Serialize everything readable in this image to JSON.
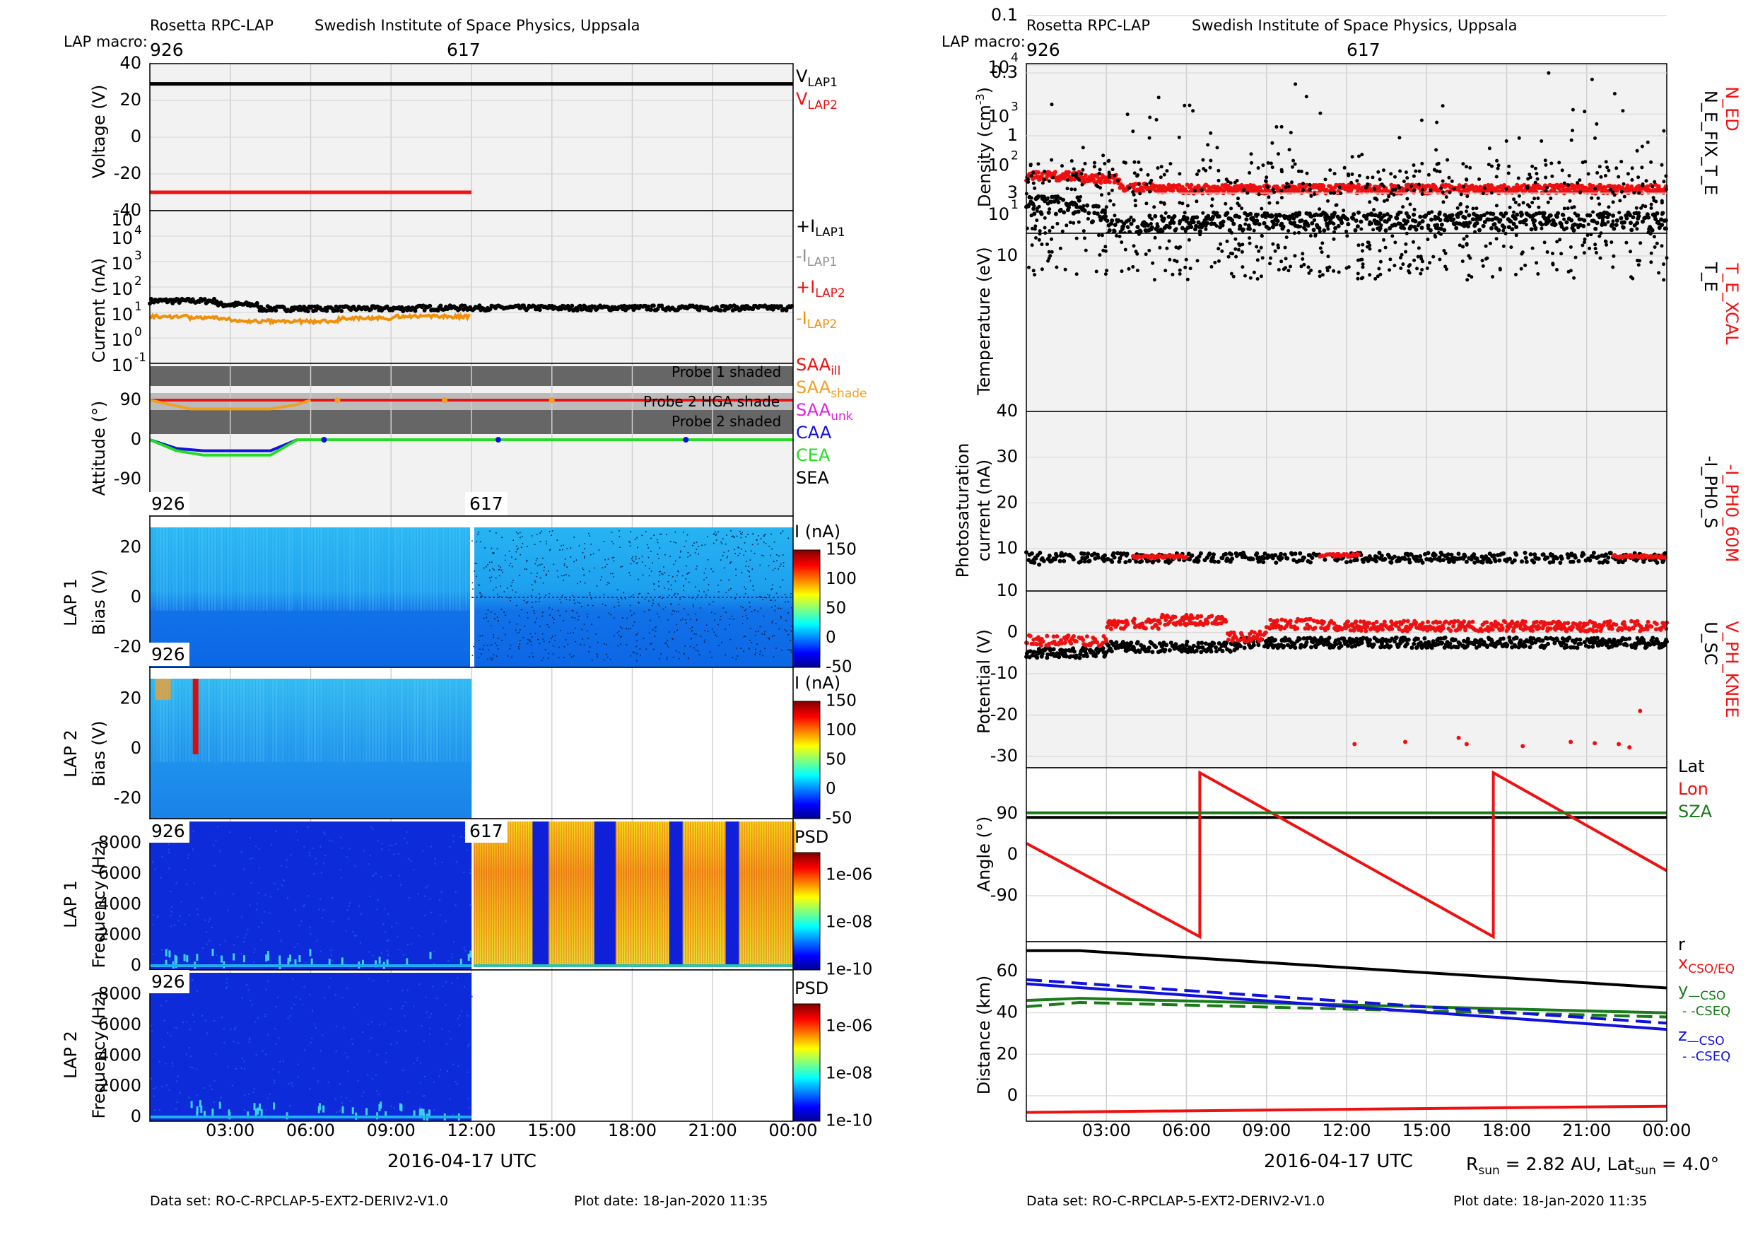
{
  "header": {
    "left": {
      "instrument": "Rosetta RPC-LAP",
      "institute": "Swedish Institute of Space Physics, Uppsala",
      "macro_label": "LAP macro:",
      "macro_1": "926",
      "macro_2": "617"
    },
    "right": {
      "instrument": "Rosetta RPC-LAP",
      "institute": "Swedish Institute of Space Physics, Uppsala",
      "macro_label": "LAP macro:",
      "macro_1": "926",
      "macro_2": "617"
    }
  },
  "footer": {
    "left_dataset": "Data set: RO-C-RPCLAP-5-EXT2-DERIV2-V1.0",
    "left_plotdate": "Plot date: 18-Jan-2020 11:35",
    "right_dataset": "Data set: RO-C-RPCLAP-5-EXT2-DERIV2-V1.0",
    "right_plotdate": "Plot date: 18-Jan-2020 11:35",
    "rsun_label": "R",
    "rsun_sub": "sun",
    "rsun_value": " = 2.82 AU, Lat",
    "latsun_sub": "sun",
    "latsun_value": " = 4.0°"
  },
  "time_axis": {
    "ticks": [
      "03:00",
      "06:00",
      "09:00",
      "12:00",
      "15:00",
      "18:00",
      "21:00",
      "00:00"
    ],
    "xlabel_left": "2016-04-17 UTC",
    "xlabel_right": "2016-04-17 UTC"
  },
  "colors": {
    "black": "#000000",
    "red": "#ee1111",
    "orange": "#f0900a",
    "gray": "#909090",
    "green": "#1a7a1a",
    "lime": "#22dd22",
    "blue": "#1111dd",
    "magenta": "#dd22dd",
    "panel_bg": "#f2f2f2"
  },
  "panels": {
    "voltage": {
      "ylabel": "Voltage (V)",
      "ticks": [
        "40",
        "20",
        "0",
        "-20",
        "-40"
      ],
      "legend": [
        {
          "main": "V",
          "sub": "LAP1"
        },
        {
          "main": "V",
          "sub": "LAP2"
        }
      ]
    },
    "current": {
      "ylabel": "Current (nA)",
      "ticks": [
        "10",
        "10",
        "10",
        "10",
        "10",
        "10",
        "10"
      ],
      "exps": [
        "4",
        "3",
        "2",
        "1",
        "0",
        "-1"
      ],
      "legend": [
        {
          "main": "+I",
          "sub": "LAP1"
        },
        {
          "main": "-I",
          "sub": "LAP1"
        },
        {
          "main": "+I",
          "sub": "LAP2"
        },
        {
          "main": "-I",
          "sub": "LAP2"
        }
      ]
    },
    "attitude": {
      "ylabel": "Attitude (°)",
      "ticks": [
        "90",
        "0",
        "-90"
      ],
      "shade_labels": [
        "Probe 1 shaded",
        "Probe 2 HGA shade",
        "Probe 2 shaded"
      ],
      "legend": [
        {
          "main": "SAA",
          "sub": "ill"
        },
        {
          "main": "SAA",
          "sub": "shade"
        },
        {
          "main": "SAA",
          "sub": "unk"
        },
        {
          "main": "CAA",
          "sub": ""
        },
        {
          "main": "CEA",
          "sub": ""
        },
        {
          "main": "SEA",
          "sub": ""
        }
      ]
    },
    "lap1bias": {
      "ylabel1": "LAP 1",
      "ylabel2": "Bias (V)",
      "ticks": [
        "20",
        "0",
        "-20"
      ],
      "macro_1": "926",
      "macro_2": "617",
      "cbar_label": "I (nA)",
      "cbar_ticks": [
        "150",
        "100",
        "50",
        "0",
        "-50"
      ]
    },
    "lap2bias": {
      "ylabel1": "LAP 2",
      "ylabel2": "Bias (V)",
      "ticks": [
        "20",
        "0",
        "-20"
      ],
      "macro_1": "926",
      "cbar_label": "I (nA)",
      "cbar_ticks": [
        "150",
        "100",
        "50",
        "0",
        "-50"
      ]
    },
    "lap1freq": {
      "ylabel1": "LAP 1",
      "ylabel2": "Frequency (Hz)",
      "ticks": [
        "8000",
        "6000",
        "4000",
        "2000",
        "0"
      ],
      "macro_1": "926",
      "macro_2": "617",
      "cbar_label": "PSD",
      "cbar_ticks": [
        "1e-06",
        "1e-08",
        "1e-10"
      ]
    },
    "lap2freq": {
      "ylabel1": "LAP 2",
      "ylabel2": "Frequency (Hz)",
      "ticks": [
        "8000",
        "6000",
        "4000",
        "2000",
        "0"
      ],
      "macro_1": "926",
      "cbar_label": "PSD",
      "cbar_ticks": [
        "1e-06",
        "1e-08",
        "1e-10"
      ]
    },
    "density": {
      "ylabel": "Density (cm",
      "ylabel_sup": "-3",
      "ylabel_end": ")",
      "ticks": [
        "10",
        "10",
        "10",
        "10"
      ],
      "exps": [
        "4",
        "3",
        "2",
        "1"
      ],
      "legend": [
        "N_ED",
        "N_E_FIX_T_E"
      ]
    },
    "temperature": {
      "ylabel": "Temperature (eV)",
      "ticks": [
        "10",
        "3",
        "1",
        "0.3",
        "0.1"
      ],
      "legend": [
        "T_E_XCAL",
        "T_E"
      ]
    },
    "photosat": {
      "ylabel1": "Photosaturation",
      "ylabel2": "current (nA)",
      "ticks": [
        "40",
        "30",
        "20",
        "10"
      ],
      "legend": [
        "-I_PH0_60M",
        "-I_PH0_S"
      ]
    },
    "potential": {
      "ylabel": "Potential (V)",
      "ticks": [
        "10",
        "0",
        "-10",
        "-20",
        "-30"
      ],
      "legend": [
        "V_PH_KNEE",
        "U_SC"
      ]
    },
    "angle": {
      "ylabel": "Angle (°)",
      "ticks": [
        "90",
        "0",
        "-90"
      ],
      "legend": [
        "Lat",
        "Lon",
        "SZA"
      ]
    },
    "distance": {
      "ylabel": "Distance (km)",
      "ticks": [
        "60",
        "40",
        "20",
        "0"
      ],
      "legend": [
        {
          "main": "r",
          "sub": ""
        },
        {
          "main": "x",
          "sub": "CSO/EQ"
        },
        {
          "main": "y",
          "sub": "—CSO"
        },
        {
          "main": "",
          "sub": "- -CSEQ"
        },
        {
          "main": "z",
          "sub": "—CSO"
        },
        {
          "main": "",
          "sub": "- -CSEQ"
        }
      ]
    }
  },
  "chart_data": [
    {
      "type": "line",
      "title": "Voltage",
      "x_unit": "hours since 2016-04-17 00:00",
      "ylim": [
        -40,
        40
      ],
      "series": [
        {
          "name": "V_LAP1",
          "x": [
            0,
            24
          ],
          "y": [
            29,
            29
          ]
        },
        {
          "name": "V_LAP2",
          "x": [
            0,
            12
          ],
          "y": [
            -30,
            -30
          ]
        }
      ]
    },
    {
      "type": "line",
      "title": "Current",
      "yscale": "log",
      "ylim": [
        0.1,
        100000
      ],
      "series": [
        {
          "name": "+I_LAP1",
          "x": [
            0,
            2,
            4,
            6,
            8,
            10,
            12,
            14,
            16,
            18,
            20,
            22,
            24
          ],
          "y": [
            25,
            30,
            15,
            12,
            13,
            15,
            15,
            15,
            14,
            15,
            15,
            15,
            18
          ]
        },
        {
          "name": "-I_LAP2",
          "x": [
            0,
            2,
            3,
            6,
            9,
            12
          ],
          "y": [
            7,
            8,
            5,
            5,
            7,
            8
          ]
        }
      ]
    },
    {
      "type": "line",
      "title": "Attitude",
      "ylim": [
        -135,
        135
      ],
      "series": [
        {
          "name": "SAA_ill",
          "x": [
            0,
            24
          ],
          "y": [
            90,
            90
          ]
        },
        {
          "name": "SAA_shade",
          "x": [
            0,
            1.5,
            2,
            4.5,
            5.5,
            6
          ],
          "y": [
            90,
            70,
            70,
            70,
            80,
            90
          ]
        },
        {
          "name": "CAA",
          "x": [
            0,
            1,
            2,
            4.5,
            5.5,
            24
          ],
          "y": [
            0,
            -20,
            -25,
            -25,
            0,
            0
          ]
        },
        {
          "name": "CEA",
          "x": [
            0,
            1,
            2,
            4.5,
            5.5,
            24
          ],
          "y": [
            0,
            -25,
            -35,
            -35,
            0,
            0
          ]
        }
      ]
    },
    {
      "type": "line",
      "title": "Angle",
      "ylim": [
        -220,
        220
      ],
      "series": [
        {
          "name": "Lat",
          "x": [
            0,
            24
          ],
          "y": [
            82,
            82
          ]
        },
        {
          "name": "Lon",
          "x": [
            0,
            6.5,
            6.5,
            17.5,
            17.5,
            24
          ],
          "y": [
            25,
            -180,
            180,
            -180,
            180,
            -35
          ]
        },
        {
          "name": "SZA",
          "x": [
            0,
            24
          ],
          "y": [
            92,
            92
          ]
        }
      ]
    },
    {
      "type": "line",
      "title": "Distance",
      "ylim": [
        -10,
        70
      ],
      "series": [
        {
          "name": "r",
          "x": [
            0,
            2,
            24
          ],
          "y": [
            70,
            70,
            52
          ]
        },
        {
          "name": "x",
          "x": [
            0,
            24
          ],
          "y": [
            -8,
            -5
          ]
        },
        {
          "name": "y_CSO",
          "x": [
            0,
            2,
            24
          ],
          "y": [
            46,
            47,
            40
          ]
        },
        {
          "name": "y_CSEQ",
          "x": [
            0,
            2,
            24
          ],
          "y": [
            43,
            45,
            38
          ]
        },
        {
          "name": "z_CSO",
          "x": [
            0,
            24
          ],
          "y": [
            54,
            32
          ]
        },
        {
          "name": "z_CSEQ",
          "x": [
            0,
            24
          ],
          "y": [
            56,
            35
          ]
        }
      ]
    }
  ]
}
